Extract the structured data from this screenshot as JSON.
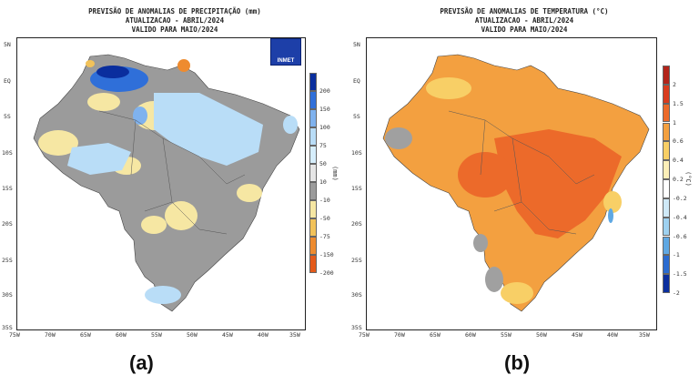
{
  "panel_a": {
    "title_lines": [
      "PREVISÃO DE ANOMALIAS DE PRECIPITAÇÃO (mm)",
      "ATUALIZACAO - ABRIL/2024",
      "VALIDO PARA MAIO/2024"
    ],
    "lat_ticks": [
      "5N",
      "EQ",
      "5S",
      "10S",
      "15S",
      "20S",
      "25S",
      "30S",
      "35S"
    ],
    "lon_ticks": [
      "75W",
      "70W",
      "65W",
      "60W",
      "55W",
      "50W",
      "45W",
      "40W",
      "35W"
    ],
    "colorbar": {
      "labels": [
        "200",
        "150",
        "100",
        "75",
        "50",
        "10",
        "-10",
        "-50",
        "-75",
        "-150",
        "-200"
      ],
      "colors": [
        "#0a2e9e",
        "#2f6fd9",
        "#7fb2ee",
        "#b9ddf7",
        "#d6eefc",
        "#e6e6e6",
        "#9b9b9b",
        "#f6e7a3",
        "#f2c25a",
        "#ee8b2f",
        "#e45a1a"
      ],
      "unit": "(mm)"
    },
    "logo_text": "INMET",
    "caption": "(a)"
  },
  "panel_b": {
    "title_lines": [
      "PREVISÃO DE ANOMALIAS DE TEMPERATURA (°C)",
      "ATUALIZACAO - ABRIL/2024",
      "VALIDO PARA MAIO/2024"
    ],
    "lat_ticks": [
      "5N",
      "EQ",
      "5S",
      "10S",
      "15S",
      "20S",
      "25S",
      "30S",
      "35S"
    ],
    "lon_ticks": [
      "75W",
      "70W",
      "65W",
      "60W",
      "55W",
      "50W",
      "45W",
      "40W",
      "35W"
    ],
    "colorbar": {
      "labels": [
        "2",
        "1.5",
        "1",
        "0.6",
        "0.4",
        "0.2",
        "-0.2",
        "-0.4",
        "-0.6",
        "-1",
        "-1.5",
        "-2"
      ],
      "colors": [
        "#b3241a",
        "#d93c1e",
        "#ec6a2a",
        "#f3a040",
        "#f8cf66",
        "#fcefb8",
        "#ffffff",
        "#cfe9f7",
        "#9ed1f0",
        "#5fa8e3",
        "#2a6bd0",
        "#0b2e9e"
      ],
      "unit": "(°C)"
    },
    "caption": "(b)"
  },
  "map_colors": {
    "precip_base": "#9b9b9b",
    "precip_yellow": "#f6e7a3",
    "precip_lightblue": "#b9ddf7",
    "precip_blue": "#2f6fd9",
    "precip_darkblue": "#0a2e9e",
    "temp_base": "#f3a040",
    "temp_hot": "#ec6a2a",
    "temp_cool": "#f8cf66",
    "temp_grey": "#a0a0a0"
  }
}
